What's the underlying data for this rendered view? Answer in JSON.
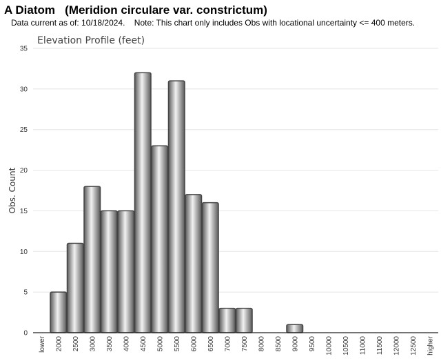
{
  "header": {
    "title": "A Diatom   (Meridion circulare var. constrictum)",
    "subtitle": "Data current as of: 10/18/2024.    Note: This chart only includes Obs with locational uncertainty <= 400 meters."
  },
  "chart_data": {
    "type": "bar",
    "title": "Elevation Profile (feet)",
    "xlabel": "",
    "ylabel": "Obs. Count",
    "ylim": [
      0,
      35
    ],
    "yticks": [
      0,
      5,
      10,
      15,
      20,
      25,
      30,
      35
    ],
    "grid": true,
    "categories": [
      "lower",
      "2000",
      "2500",
      "3000",
      "3500",
      "4000",
      "4500",
      "5000",
      "5500",
      "6000",
      "6500",
      "7000",
      "7500",
      "8000",
      "8500",
      "9000",
      "9500",
      "10000",
      "10500",
      "11000",
      "11500",
      "12000",
      "12500",
      "higher"
    ],
    "values": [
      0,
      5,
      11,
      18,
      15,
      15,
      32,
      23,
      31,
      17,
      16,
      3,
      3,
      0,
      0,
      1,
      0,
      0,
      0,
      0,
      0,
      0,
      0,
      0
    ],
    "colors": {
      "bar_dark": "#5a5a5a",
      "bar_light": "#f2f2f2",
      "bar_stroke": "#444444",
      "grid": "#e4e4e4"
    }
  }
}
